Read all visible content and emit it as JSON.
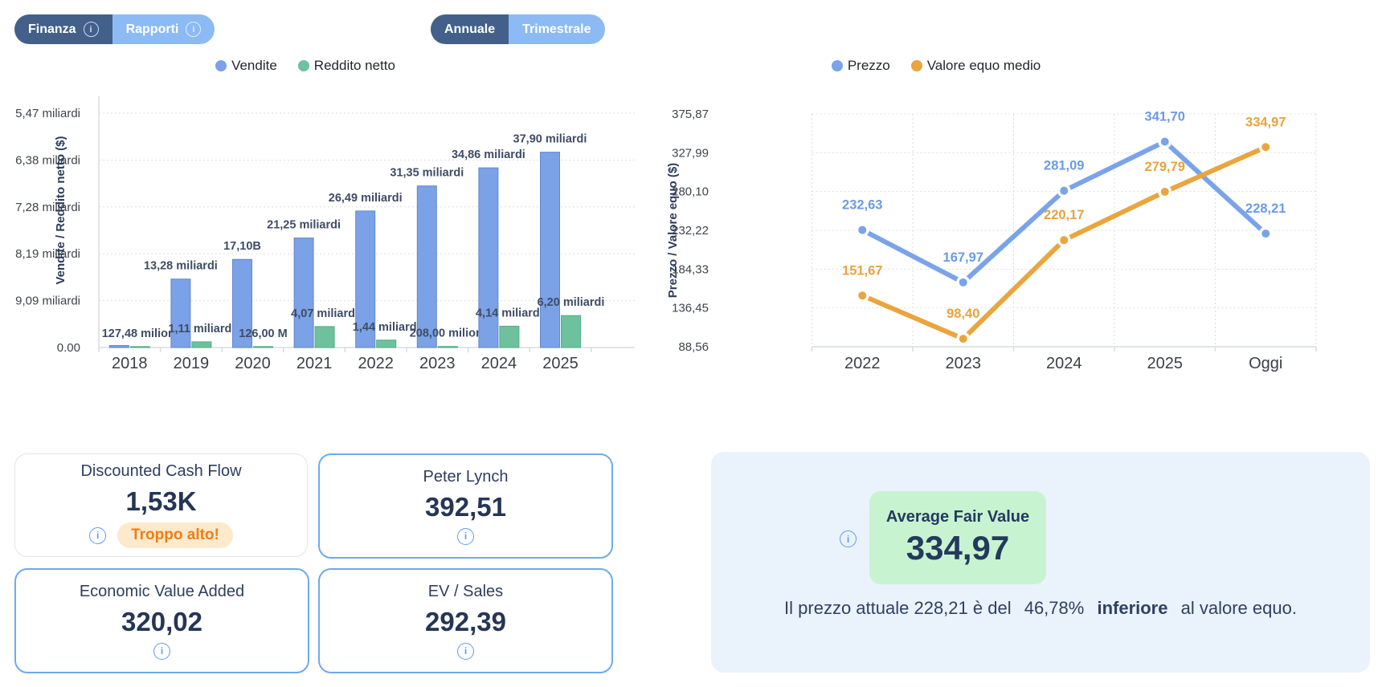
{
  "header": {
    "tabs": [
      {
        "label": "Finanza",
        "selected": true,
        "has_info": true
      },
      {
        "label": "Rapporti",
        "selected": false,
        "has_info": true
      }
    ],
    "period_toggle": [
      {
        "label": "Annuale",
        "selected": true
      },
      {
        "label": "Trimestrale",
        "selected": false
      }
    ]
  },
  "colors": {
    "sales_blue": "#7ba1e6",
    "income_green": "#6ec19d",
    "price_blue": "#7aa3ea",
    "fair_value_orange": "#e9a53e",
    "navy_text": "#2d3e5f",
    "toggle_dark": "#42608a",
    "toggle_light": "#8cbaf4",
    "panel_bg": "#eaf2fc",
    "fair_value_box_bg": "#c8f3d0",
    "badge_bg": "#fdeacc",
    "badge_text": "#ef7d14",
    "card_blue_border": "#6ea9f0"
  },
  "chart_data": [
    {
      "type": "bar",
      "title": "",
      "categories": [
        "2018",
        "2019",
        "2020",
        "2021",
        "2022",
        "2023",
        "2024",
        "2025"
      ],
      "series": [
        {
          "name": "Vendite",
          "color": "#7ba1e6",
          "unit": "miliardi $",
          "values": [
            null,
            13.28,
            17.1,
            21.25,
            26.49,
            31.35,
            34.86,
            37.9
          ],
          "labels": [
            "",
            "13,28 miliardi",
            "17,10B",
            "21,25 miliardi",
            "26,49 miliardi",
            "31,35 miliardi",
            "34,86 miliardi",
            "37,90 miliardi"
          ]
        },
        {
          "name": "Reddito netto",
          "color": "#6ec19d",
          "unit": "miliardi $",
          "values": [
            0.12748,
            1.11,
            0.126,
            4.07,
            1.44,
            0.208,
            4.14,
            6.2
          ],
          "labels": [
            "127,48 milioni",
            "1,11 miliardi",
            "126,00 M",
            "4,07 miliardi",
            "1,44 miliardi",
            "208,00 milioni",
            "4,14 miliardi",
            "6,20 miliardi"
          ]
        }
      ],
      "xlabel": "",
      "ylabel": "Vendite / Reddito netto ($)",
      "y_ticks": [
        "5,47 miliardi",
        "6,38 miliardi",
        "7,28 miliardi",
        "8,19 miliardi",
        "9,09 miliardi",
        "0.00"
      ],
      "ylim": [
        0,
        45.47
      ],
      "grid": "horizontal dotted",
      "legend_position": "top-center"
    },
    {
      "type": "line",
      "title": "",
      "categories": [
        "2022",
        "2023",
        "2024",
        "2025",
        "Oggi"
      ],
      "series": [
        {
          "name": "Prezzo",
          "color": "#7aa3ea",
          "values": [
            232.63,
            167.97,
            281.09,
            341.7,
            228.21
          ],
          "labels": [
            "232,63",
            "167,97",
            "281,09",
            "341,70",
            "228,21"
          ]
        },
        {
          "name": "Valore equo medio",
          "color": "#e9a53e",
          "values": [
            151.67,
            98.4,
            220.17,
            279.79,
            334.97
          ],
          "labels": [
            "151,67",
            "98,40",
            "220,17",
            "279,79",
            "334,97"
          ]
        }
      ],
      "xlabel": "",
      "ylabel": "Prezzo / Valore equo ($)",
      "y_ticks": [
        "375,87",
        "327,99",
        "280,10",
        "232,22",
        "184,33",
        "136,45",
        "88,56"
      ],
      "y_tick_values": [
        375.87,
        327.99,
        280.1,
        232.22,
        184.33,
        136.45,
        88.56
      ],
      "ylim": [
        88.56,
        375.87
      ],
      "grid": "both dotted",
      "legend_position": "top-center"
    }
  ],
  "cards": [
    {
      "title": "Discounted Cash Flow",
      "value": "1,53K",
      "badge": "Troppo alto!",
      "border": "gray",
      "has_info": true
    },
    {
      "title": "Peter Lynch",
      "value": "392,51",
      "border": "blue",
      "has_info": true
    },
    {
      "title": "Economic Value Added",
      "value": "320,02",
      "border": "blue",
      "has_info": true
    },
    {
      "title": "EV / Sales",
      "value": "292,39",
      "border": "blue",
      "has_info": true
    }
  ],
  "fair_value_panel": {
    "box_title": "Average Fair Value",
    "box_value": "334,97",
    "text_before": "Il prezzo attuale 228,21 è del",
    "percent": "46,78%",
    "emphasis": "inferiore",
    "text_after": "al valore equo."
  }
}
